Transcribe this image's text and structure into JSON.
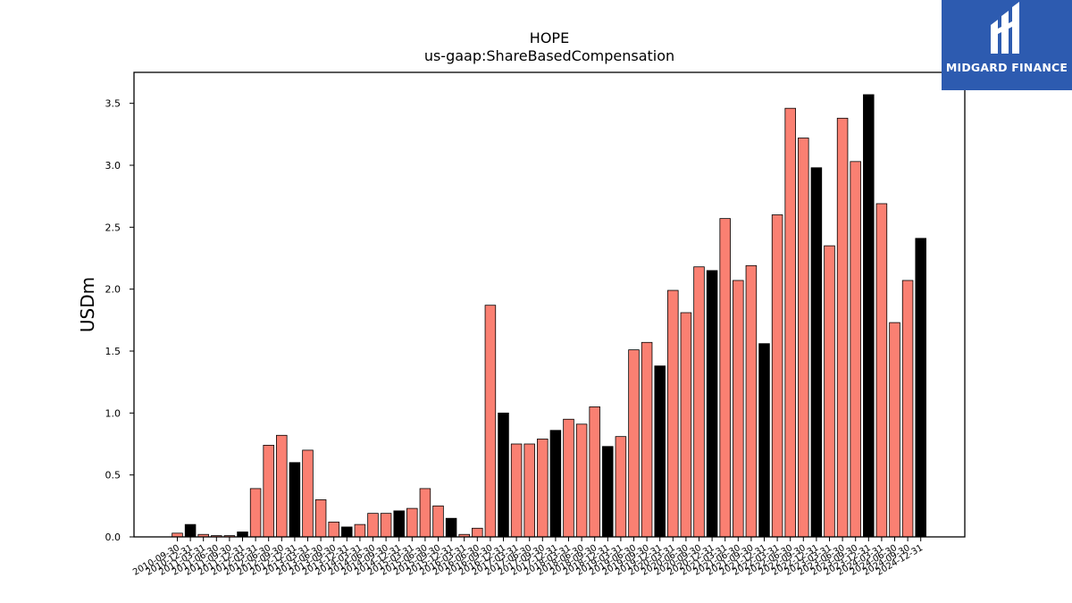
{
  "chart_data": {
    "type": "bar",
    "title": "HOPE",
    "subtitle": "us-gaap:ShareBasedCompensation",
    "xlabel": "",
    "ylabel": "USDm",
    "ylim": [
      0,
      3.75
    ],
    "yticks": [
      0.0,
      0.5,
      1.0,
      1.5,
      2.0,
      2.5,
      3.0,
      3.5
    ],
    "ytick_labels": [
      "0.0",
      "0.5",
      "1.0",
      "1.5",
      "2.0",
      "2.5",
      "3.0",
      "3.5"
    ],
    "grid": false,
    "colors": {
      "default": "#fa8072",
      "highlight": "#000000",
      "edge": "#000000"
    },
    "categories": [
      "2010-09-30",
      "2010-12-31",
      "2011-03-31",
      "2011-06-30",
      "2011-09-30",
      "2011-12-31",
      "2012-03-31",
      "2012-06-30",
      "2012-09-30",
      "2012-12-31",
      "2013-03-31",
      "2013-06-30",
      "2013-09-30",
      "2013-12-31",
      "2014-03-31",
      "2014-06-30",
      "2014-09-30",
      "2014-12-31",
      "2015-03-31",
      "2015-06-30",
      "2015-09-30",
      "2015-12-31",
      "2016-03-31",
      "2016-06-30",
      "2016-09-30",
      "2016-12-31",
      "2017-03-31",
      "2017-06-30",
      "2017-09-30",
      "2017-12-31",
      "2018-03-31",
      "2018-06-30",
      "2018-09-30",
      "2018-12-31",
      "2019-03-31",
      "2019-06-30",
      "2019-09-30",
      "2019-12-31",
      "2020-03-31",
      "2020-06-30",
      "2020-09-30",
      "2020-12-31",
      "2021-03-31",
      "2021-06-30",
      "2021-09-30",
      "2021-12-31",
      "2022-03-31",
      "2022-06-30",
      "2022-09-30",
      "2022-12-31",
      "2023-03-31",
      "2023-06-30",
      "2023-09-30",
      "2023-12-31",
      "2024-03-31",
      "2024-06-30",
      "2024-09-30",
      "2024-12-31"
    ],
    "values": [
      0.03,
      0.1,
      0.02,
      0.01,
      0.01,
      0.04,
      0.39,
      0.74,
      0.82,
      0.6,
      0.7,
      0.3,
      0.12,
      0.08,
      0.1,
      0.19,
      0.19,
      0.21,
      0.23,
      0.39,
      0.25,
      0.15,
      0.02,
      0.07,
      1.87,
      1.0,
      0.75,
      0.75,
      0.79,
      0.86,
      0.95,
      0.91,
      1.05,
      0.73,
      0.81,
      1.51,
      1.57,
      1.38,
      1.99,
      1.81,
      2.18,
      2.15,
      2.57,
      2.07,
      2.19,
      1.56,
      2.6,
      3.46,
      3.22,
      2.98,
      2.35,
      3.38,
      3.03,
      3.57,
      2.69,
      1.73,
      2.07,
      2.41
    ],
    "highlight": [
      false,
      true,
      false,
      false,
      false,
      true,
      false,
      false,
      false,
      true,
      false,
      false,
      false,
      true,
      false,
      false,
      false,
      true,
      false,
      false,
      false,
      true,
      false,
      false,
      false,
      true,
      false,
      false,
      false,
      true,
      false,
      false,
      false,
      true,
      false,
      false,
      false,
      true,
      false,
      false,
      false,
      true,
      false,
      false,
      false,
      true,
      false,
      false,
      false,
      true,
      false,
      false,
      false,
      true,
      false,
      false,
      false,
      true
    ]
  },
  "logo": {
    "text": "MIDGARD FINANCE",
    "icon": "midgard-logo-icon"
  }
}
